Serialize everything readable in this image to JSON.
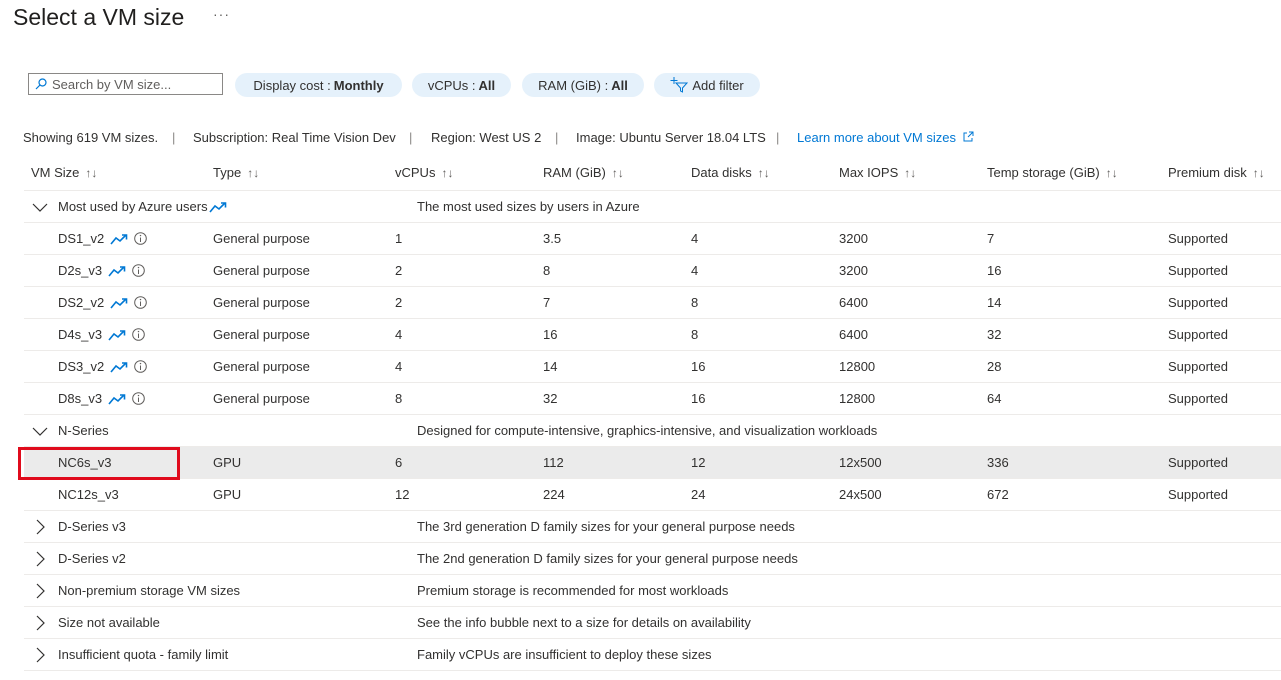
{
  "page": {
    "title": "Select a VM size",
    "more_label": "···"
  },
  "toolbar": {
    "search_placeholder": "Search by VM size...",
    "filters": [
      {
        "label": "Display cost :",
        "value": "Monthly"
      },
      {
        "label": "vCPUs :",
        "value": "All"
      },
      {
        "label": "RAM (GiB) :",
        "value": "All"
      }
    ],
    "add_filter": "Add filter"
  },
  "info": {
    "showing": "Showing 619 VM sizes.",
    "subscription": "Subscription: Real Time Vision Dev",
    "region": "Region: West US 2",
    "image": "Image: Ubuntu Server 18.04 LTS",
    "learn_more": "Learn more about VM sizes",
    "separator": "|"
  },
  "columns": [
    "VM Size",
    "Type",
    "vCPUs",
    "RAM (GiB)",
    "Data disks",
    "Max IOPS",
    "Temp storage (GiB)",
    "Premium disk"
  ],
  "sort_glyph": "↑↓",
  "colors": {
    "accent": "#0078d4",
    "selected_row": "#ebebeb",
    "highlight_box": "#e00b1c"
  },
  "groups": [
    {
      "name": "Most used by Azure users",
      "description": "The most used sizes by users in Azure",
      "expanded": true,
      "trending": true,
      "rows": [
        {
          "size": "DS1_v2",
          "type": "General purpose",
          "vcpus": "1",
          "ram": "3.5",
          "disks": "4",
          "iops": "3200",
          "temp": "7",
          "premium": "Supported"
        },
        {
          "size": "D2s_v3",
          "type": "General purpose",
          "vcpus": "2",
          "ram": "8",
          "disks": "4",
          "iops": "3200",
          "temp": "16",
          "premium": "Supported"
        },
        {
          "size": "DS2_v2",
          "type": "General purpose",
          "vcpus": "2",
          "ram": "7",
          "disks": "8",
          "iops": "6400",
          "temp": "14",
          "premium": "Supported"
        },
        {
          "size": "D4s_v3",
          "type": "General purpose",
          "vcpus": "4",
          "ram": "16",
          "disks": "8",
          "iops": "6400",
          "temp": "32",
          "premium": "Supported"
        },
        {
          "size": "DS3_v2",
          "type": "General purpose",
          "vcpus": "4",
          "ram": "14",
          "disks": "16",
          "iops": "12800",
          "temp": "28",
          "premium": "Supported"
        },
        {
          "size": "D8s_v3",
          "type": "General purpose",
          "vcpus": "8",
          "ram": "32",
          "disks": "16",
          "iops": "12800",
          "temp": "64",
          "premium": "Supported"
        }
      ]
    },
    {
      "name": "N-Series",
      "description": "Designed for compute-intensive, graphics-intensive, and visualization workloads",
      "expanded": true,
      "trending": false,
      "rows": [
        {
          "size": "NC6s_v3",
          "type": "GPU",
          "vcpus": "6",
          "ram": "112",
          "disks": "12",
          "iops": "12x500",
          "temp": "336",
          "premium": "Supported",
          "selected": true
        },
        {
          "size": "NC12s_v3",
          "type": "GPU",
          "vcpus": "12",
          "ram": "224",
          "disks": "24",
          "iops": "24x500",
          "temp": "672",
          "premium": "Supported"
        }
      ]
    },
    {
      "name": "D-Series v3",
      "description": "The 3rd generation D family sizes for your general purpose needs",
      "expanded": false,
      "rows": []
    },
    {
      "name": "D-Series v2",
      "description": "The 2nd generation D family sizes for your general purpose needs",
      "expanded": false,
      "rows": []
    },
    {
      "name": "Non-premium storage VM sizes",
      "description": "Premium storage is recommended for most workloads",
      "expanded": false,
      "rows": []
    },
    {
      "name": "Size not available",
      "description": "See the info bubble next to a size for details on availability",
      "expanded": false,
      "rows": []
    },
    {
      "name": "Insufficient quota - family limit",
      "description": "Family vCPUs are insufficient to deploy these sizes",
      "expanded": false,
      "rows": []
    }
  ]
}
